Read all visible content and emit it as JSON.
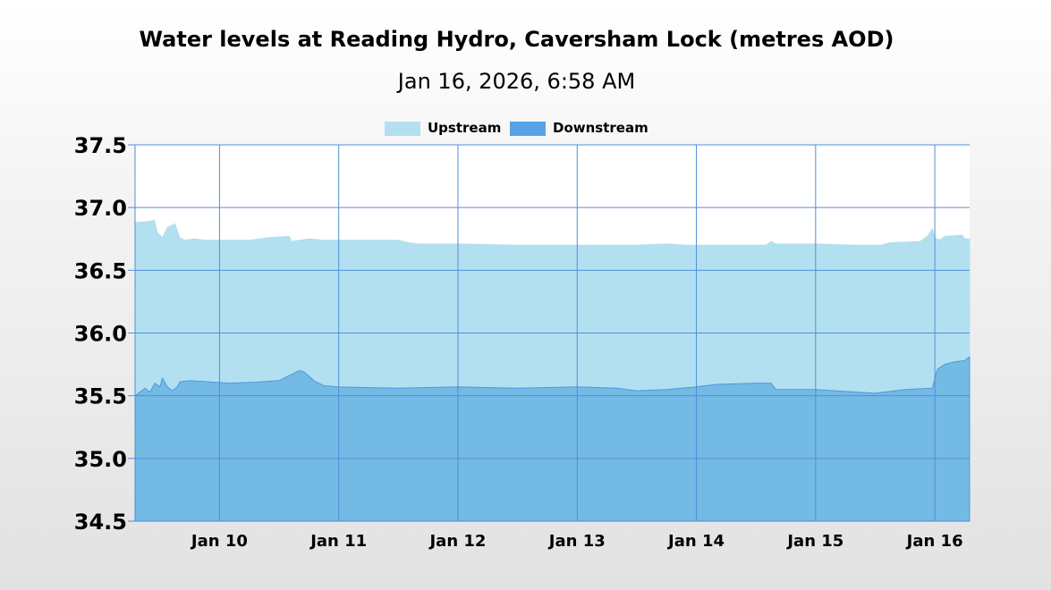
{
  "chart_data": {
    "type": "area",
    "title": "Water levels at Reading Hydro, Caversham Lock (metres AOD)",
    "subtitle": "Jan 16, 2026, 6:58 AM",
    "ylim": [
      34.5,
      37.5
    ],
    "y_ticks": [
      "37.5",
      "37.0",
      "36.5",
      "36.0",
      "35.5",
      "35.0",
      "34.5"
    ],
    "x_range": [
      "2026-01-09T07:00",
      "2026-01-16T07:00"
    ],
    "x_ticks": [
      {
        "date": "2026-01-10",
        "label": "Jan 10"
      },
      {
        "date": "2026-01-11",
        "label": "Jan 11"
      },
      {
        "date": "2026-01-12",
        "label": "Jan 12"
      },
      {
        "date": "2026-01-13",
        "label": "Jan 13"
      },
      {
        "date": "2026-01-14",
        "label": "Jan 14"
      },
      {
        "date": "2026-01-15",
        "label": "Jan 15"
      },
      {
        "date": "2026-01-16",
        "label": "Jan 16"
      }
    ],
    "grid": true,
    "legend_position": "top-center",
    "series": [
      {
        "name": "Upstream",
        "color": "#b3e0f0",
        "points": [
          [
            "2026-01-09T07:00",
            36.88
          ],
          [
            "2026-01-09T10:00",
            36.89
          ],
          [
            "2026-01-09T10:50",
            36.9
          ],
          [
            "2026-01-09T11:30",
            36.8
          ],
          [
            "2026-01-09T12:30",
            36.76
          ],
          [
            "2026-01-09T13:30",
            36.84
          ],
          [
            "2026-01-09T15:00",
            36.87
          ],
          [
            "2026-01-09T16:00",
            36.76
          ],
          [
            "2026-01-09T17:00",
            36.74
          ],
          [
            "2026-01-09T19:00",
            36.75
          ],
          [
            "2026-01-09T21:00",
            36.74
          ],
          [
            "2026-01-10T00:00",
            36.74
          ],
          [
            "2026-01-10T06:00",
            36.74
          ],
          [
            "2026-01-10T10:00",
            36.76
          ],
          [
            "2026-01-10T14:00",
            36.77
          ],
          [
            "2026-01-10T14:30",
            36.73
          ],
          [
            "2026-01-10T18:00",
            36.75
          ],
          [
            "2026-01-10T21:00",
            36.74
          ],
          [
            "2026-01-11T00:00",
            36.74
          ],
          [
            "2026-01-11T12:00",
            36.74
          ],
          [
            "2026-01-11T14:00",
            36.72
          ],
          [
            "2026-01-11T16:00",
            36.71
          ],
          [
            "2026-01-12T00:00",
            36.71
          ],
          [
            "2026-01-12T12:00",
            36.7
          ],
          [
            "2026-01-13T00:00",
            36.7
          ],
          [
            "2026-01-13T12:00",
            36.7
          ],
          [
            "2026-01-13T18:00",
            36.71
          ],
          [
            "2026-01-13T22:00",
            36.7
          ],
          [
            "2026-01-14T06:00",
            36.7
          ],
          [
            "2026-01-14T14:00",
            36.7
          ],
          [
            "2026-01-14T15:00",
            36.73
          ],
          [
            "2026-01-14T16:00",
            36.71
          ],
          [
            "2026-01-14T20:00",
            36.71
          ],
          [
            "2026-01-15T00:00",
            36.71
          ],
          [
            "2026-01-15T08:00",
            36.7
          ],
          [
            "2026-01-15T13:00",
            36.7
          ],
          [
            "2026-01-15T15:00",
            36.72
          ],
          [
            "2026-01-15T21:00",
            36.73
          ],
          [
            "2026-01-15T22:30",
            36.77
          ],
          [
            "2026-01-15T23:30",
            36.83
          ],
          [
            "2026-01-16T00:00",
            36.76
          ],
          [
            "2026-01-16T01:00",
            36.74
          ],
          [
            "2026-01-16T02:00",
            36.77
          ],
          [
            "2026-01-16T05:30",
            36.78
          ],
          [
            "2026-01-16T06:00",
            36.75
          ],
          [
            "2026-01-16T07:00",
            36.75
          ]
        ]
      },
      {
        "name": "Downstream",
        "color": "#56a3e6",
        "points": [
          [
            "2026-01-09T07:00",
            35.5
          ],
          [
            "2026-01-09T09:00",
            35.56
          ],
          [
            "2026-01-09T10:00",
            35.53
          ],
          [
            "2026-01-09T11:00",
            35.6
          ],
          [
            "2026-01-09T12:00",
            35.57
          ],
          [
            "2026-01-09T12:30",
            35.64
          ],
          [
            "2026-01-09T13:30",
            35.57
          ],
          [
            "2026-01-09T14:30",
            35.54
          ],
          [
            "2026-01-09T15:30",
            35.57
          ],
          [
            "2026-01-09T16:00",
            35.61
          ],
          [
            "2026-01-09T18:00",
            35.62
          ],
          [
            "2026-01-09T22:00",
            35.61
          ],
          [
            "2026-01-10T02:00",
            35.6
          ],
          [
            "2026-01-10T08:00",
            35.61
          ],
          [
            "2026-01-10T12:00",
            35.62
          ],
          [
            "2026-01-10T14:00",
            35.66
          ],
          [
            "2026-01-10T16:00",
            35.7
          ],
          [
            "2026-01-10T17:00",
            35.69
          ],
          [
            "2026-01-10T19:00",
            35.62
          ],
          [
            "2026-01-10T21:00",
            35.58
          ],
          [
            "2026-01-11T00:00",
            35.57
          ],
          [
            "2026-01-11T12:00",
            35.56
          ],
          [
            "2026-01-12T00:00",
            35.57
          ],
          [
            "2026-01-12T12:00",
            35.56
          ],
          [
            "2026-01-13T00:00",
            35.57
          ],
          [
            "2026-01-13T08:00",
            35.56
          ],
          [
            "2026-01-13T12:00",
            35.54
          ],
          [
            "2026-01-13T18:00",
            35.55
          ],
          [
            "2026-01-14T00:00",
            35.57
          ],
          [
            "2026-01-14T04:00",
            35.59
          ],
          [
            "2026-01-14T12:00",
            35.6
          ],
          [
            "2026-01-14T15:00",
            35.6
          ],
          [
            "2026-01-14T16:00",
            35.55
          ],
          [
            "2026-01-14T20:00",
            35.55
          ],
          [
            "2026-01-15T00:00",
            35.55
          ],
          [
            "2026-01-15T12:00",
            35.52
          ],
          [
            "2026-01-15T18:00",
            35.55
          ],
          [
            "2026-01-15T23:30",
            35.56
          ],
          [
            "2026-01-16T00:30",
            35.71
          ],
          [
            "2026-01-16T02:00",
            35.75
          ],
          [
            "2026-01-16T04:00",
            35.77
          ],
          [
            "2026-01-16T06:00",
            35.78
          ],
          [
            "2026-01-16T07:00",
            35.81
          ]
        ]
      }
    ],
    "colors": {
      "grid": "#4f8fd6",
      "plot_background": "#ffffff"
    }
  }
}
